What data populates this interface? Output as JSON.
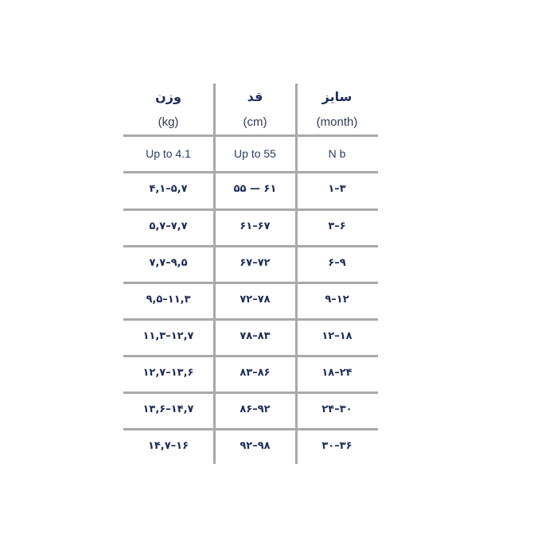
{
  "headers": [
    {
      "title": "وزن",
      "unit": "(kg)"
    },
    {
      "title": "قد",
      "unit": "(cm)"
    },
    {
      "title": "سایز",
      "unit": "(month)"
    }
  ],
  "rows": [
    [
      "Up to 4.1",
      "Up to 55",
      "N b"
    ],
    [
      "۴,۱–۵,۷",
      "۵۵ — ۶۱",
      "۱–۳"
    ],
    [
      "۵,۷–۷,۷",
      "۶۱–۶۷",
      "۳–۶"
    ],
    [
      "۷,۷–۹,۵",
      "۶۷–۷۲",
      "۶–۹"
    ],
    [
      "۹,۵–۱۱,۳",
      "۷۲–۷۸",
      "۹–۱۲"
    ],
    [
      "۱۱,۳–۱۲,۷",
      "۷۸–۸۳",
      "۱۲–۱۸"
    ],
    [
      "۱۲,۷–۱۳,۶",
      "۸۳–۸۶",
      "۱۸–۲۴"
    ],
    [
      "۱۳,۶–۱۴,۷",
      "۸۶–۹۲",
      "۲۴–۳۰"
    ],
    [
      "۱۴,۷–۱۶",
      "۹۲–۹۸",
      "۳۰–۳۶"
    ]
  ],
  "colors": {
    "text": "#1f2d5a",
    "grid": "#a9a9a9"
  }
}
